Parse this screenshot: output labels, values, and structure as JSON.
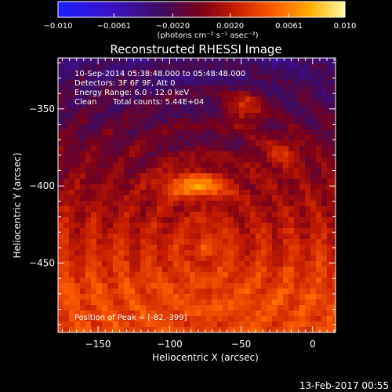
{
  "chart_data": {
    "type": "heatmap",
    "title": "Reconstructed RHESSI Image",
    "xlabel": "Heliocentric X (arcsec)",
    "ylabel": "Heliocentric Y (arcsec)",
    "xlim": [
      -178,
      16
    ],
    "ylim": [
      -495,
      -317
    ],
    "x_ticks": [
      -150,
      -100,
      -50,
      0
    ],
    "y_ticks": [
      -350,
      -400,
      -450
    ],
    "x_tick_labels": [
      "−150",
      "−100",
      "−50",
      "0"
    ],
    "y_tick_labels": [
      "−350",
      "−400",
      "−450"
    ],
    "colorbar": {
      "range": [
        -0.01,
        0.01
      ],
      "ticks": [
        -0.01,
        -0.0061,
        -0.002,
        0.002,
        0.0061,
        0.01
      ],
      "tick_labels": [
        "−0.010",
        "−0.0061",
        "−0.0020",
        "0.0020",
        "0.0061",
        "0.010"
      ],
      "units_text": "(photons cm⁻² s⁻¹ asec⁻²)"
    },
    "annotations": {
      "time_range": "10-Sep-2014 05:38:48.000 to 05:48:48.000",
      "detectors": "Detectors: 3F 6F 9F, Att 0",
      "energy": "Energy Range: 6.0 - 12.0 keV",
      "clean": "Clean",
      "total_counts": "Total counts: 5.44E+04",
      "peak": "Position of Peak = [-82,-399]"
    },
    "sources": [
      {
        "x": -82,
        "y": -399,
        "peak": 0.01
      },
      {
        "x": -48,
        "y": -349,
        "peak": 0.0085
      },
      {
        "x": -22,
        "y": -378,
        "peak": 0.007
      },
      {
        "x": -73,
        "y": -438,
        "peak": 0.0055
      }
    ]
  },
  "footer": {
    "date": "13-Feb-2017 00:55"
  },
  "colors": {
    "background": "#000000",
    "text": "#ffffff",
    "colormap": "red-temperature (blue-purple-red-orange-yellow-white)"
  }
}
